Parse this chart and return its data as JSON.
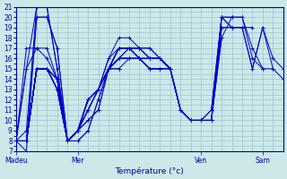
{
  "xlabel": "Température (°c)",
  "ylim": [
    7,
    21
  ],
  "yticks": [
    7,
    8,
    9,
    10,
    11,
    12,
    13,
    14,
    15,
    16,
    17,
    18,
    19,
    20,
    21
  ],
  "day_positions": [
    0,
    72,
    216,
    288
  ],
  "day_labels": [
    "Madeu",
    "Mer",
    "Ven",
    "Sam"
  ],
  "bg_color": "#cce8e8",
  "grid_color": "#99bbcc",
  "line_color": "#0000cc",
  "forecast_series": [
    {
      "x": [
        0,
        12,
        24,
        36,
        48,
        60,
        72,
        84,
        96,
        108,
        120,
        132,
        144,
        156,
        168,
        180,
        192,
        204,
        216,
        228,
        240,
        252,
        264,
        276,
        288,
        300,
        312
      ],
      "y": [
        8,
        8,
        20,
        20,
        17,
        8,
        8,
        9,
        12,
        15,
        16,
        17,
        16,
        15,
        15,
        15,
        11,
        10,
        10,
        10,
        19,
        19,
        19,
        15,
        19,
        16,
        15
      ]
    },
    {
      "x": [
        0,
        12,
        24,
        36,
        48,
        60,
        72,
        84,
        96,
        108,
        120,
        132,
        144,
        156,
        168,
        180,
        192,
        204,
        216,
        228,
        240,
        252,
        264,
        276,
        288,
        300,
        312
      ],
      "y": [
        8,
        7,
        20,
        20,
        17,
        8,
        8,
        9,
        12,
        15,
        16,
        17,
        16,
        15,
        15,
        15,
        11,
        10,
        10,
        10,
        19,
        19,
        19,
        15,
        19,
        15,
        14
      ]
    },
    {
      "x": [
        0,
        12,
        24,
        36,
        48,
        60,
        72,
        84,
        96,
        108,
        120,
        132,
        144,
        156,
        168,
        180,
        192,
        204,
        216,
        228,
        240,
        252,
        264,
        276,
        288,
        300
      ],
      "y": [
        8,
        9,
        21,
        21,
        15,
        8,
        9,
        10,
        11,
        15,
        17,
        17,
        16,
        16,
        16,
        15,
        11,
        10,
        10,
        11,
        20,
        20,
        20,
        16,
        15,
        15
      ]
    },
    {
      "x": [
        0,
        12,
        24,
        36,
        48,
        60,
        72,
        84,
        96,
        108,
        120,
        132,
        144,
        156,
        168,
        180,
        192,
        204,
        216,
        228,
        240,
        252,
        264,
        276,
        288
      ],
      "y": [
        8,
        15,
        21,
        21,
        15,
        8,
        9,
        10,
        11,
        15,
        17,
        17,
        16,
        16,
        16,
        15,
        11,
        10,
        10,
        11,
        20,
        20,
        20,
        17,
        15
      ]
    },
    {
      "x": [
        0,
        12,
        24,
        36,
        48,
        60,
        72,
        84,
        96,
        108,
        120,
        132,
        144,
        156,
        168,
        180,
        192,
        204,
        216,
        228,
        240,
        252,
        264,
        276
      ],
      "y": [
        8,
        17,
        17,
        17,
        14,
        8,
        9,
        11,
        13,
        16,
        18,
        18,
        17,
        17,
        16,
        15,
        11,
        10,
        10,
        10,
        20,
        19,
        19,
        19
      ]
    },
    {
      "x": [
        0,
        12,
        24,
        36,
        48,
        60,
        72,
        84,
        96,
        108,
        120,
        132,
        144,
        156,
        168,
        180,
        192,
        204,
        216,
        228,
        240,
        252,
        264
      ],
      "y": [
        8,
        15,
        17,
        16,
        14,
        8,
        9,
        11,
        13,
        16,
        17,
        17,
        17,
        17,
        16,
        15,
        11,
        10,
        10,
        10,
        20,
        19,
        19
      ]
    },
    {
      "x": [
        0,
        12,
        24,
        36,
        48,
        60,
        72,
        84,
        96,
        108,
        120,
        132,
        144,
        156,
        168,
        180,
        192,
        204,
        216,
        228,
        240,
        252
      ],
      "y": [
        8,
        8,
        15,
        15,
        13,
        8,
        9,
        11,
        13,
        15,
        17,
        17,
        17,
        16,
        16,
        15,
        11,
        10,
        10,
        10,
        18,
        20
      ]
    },
    {
      "x": [
        0,
        12,
        24,
        36,
        48,
        60,
        72,
        84,
        96,
        108,
        120,
        132,
        144,
        156,
        168,
        180,
        192,
        204,
        216,
        228,
        240
      ],
      "y": [
        8,
        8,
        15,
        15,
        13,
        8,
        9,
        11,
        13,
        15,
        17,
        17,
        17,
        16,
        16,
        15,
        11,
        10,
        10,
        10,
        18
      ]
    },
    {
      "x": [
        0,
        12,
        24,
        36,
        48,
        60,
        72,
        84,
        96,
        108,
        120,
        132,
        144,
        156,
        168,
        180,
        192,
        204,
        216,
        228
      ],
      "y": [
        8,
        8,
        15,
        15,
        14,
        8,
        9,
        12,
        13,
        15,
        17,
        17,
        17,
        16,
        16,
        15,
        11,
        10,
        10,
        10
      ]
    },
    {
      "x": [
        0,
        12,
        24,
        36,
        48,
        60,
        72,
        84,
        96,
        108,
        120,
        132,
        144,
        156,
        168,
        180,
        192,
        204,
        216
      ],
      "y": [
        8,
        8,
        15,
        15,
        14,
        8,
        9,
        12,
        13,
        15,
        17,
        17,
        17,
        16,
        16,
        15,
        11,
        10,
        10
      ]
    },
    {
      "x": [
        0,
        12,
        24,
        36,
        48,
        60,
        72,
        84,
        96,
        108,
        120,
        132,
        144,
        156,
        168,
        180,
        192,
        204
      ],
      "y": [
        8,
        8,
        15,
        15,
        14,
        8,
        9,
        12,
        13,
        15,
        16,
        16,
        16,
        16,
        16,
        15,
        11,
        10
      ]
    },
    {
      "x": [
        0,
        12,
        24,
        36,
        48,
        60,
        72,
        84,
        96,
        108,
        120,
        132,
        144,
        156,
        168,
        180,
        192
      ],
      "y": [
        8,
        8,
        15,
        15,
        14,
        8,
        9,
        12,
        13,
        15,
        16,
        16,
        16,
        16,
        16,
        15,
        11
      ]
    },
    {
      "x": [
        0,
        12,
        24,
        36,
        48,
        60,
        72,
        84,
        96,
        108,
        120,
        132,
        144,
        156,
        168,
        180
      ],
      "y": [
        8,
        8,
        15,
        15,
        14,
        8,
        9,
        12,
        13,
        15,
        16,
        16,
        16,
        15,
        15,
        15
      ]
    },
    {
      "x": [
        0,
        12,
        24,
        36,
        48,
        60,
        72,
        84,
        96,
        108,
        120,
        132,
        144,
        156,
        168
      ],
      "y": [
        8,
        8,
        15,
        15,
        14,
        8,
        9,
        12,
        13,
        15,
        16,
        16,
        16,
        15,
        15
      ]
    },
    {
      "x": [
        0,
        12,
        24,
        36,
        48,
        60,
        72,
        84,
        96,
        108,
        120,
        132,
        144,
        156
      ],
      "y": [
        8,
        8,
        15,
        15,
        14,
        8,
        9,
        12,
        13,
        15,
        16,
        16,
        16,
        15
      ]
    },
    {
      "x": [
        0,
        12,
        24,
        36,
        48,
        60,
        72,
        84,
        96,
        108,
        120,
        132,
        144
      ],
      "y": [
        8,
        8,
        15,
        15,
        14,
        8,
        9,
        12,
        13,
        15,
        16,
        16,
        16
      ]
    },
    {
      "x": [
        0,
        12,
        24,
        36,
        48,
        60,
        72,
        84,
        96,
        108,
        120,
        132
      ],
      "y": [
        8,
        8,
        15,
        15,
        14,
        8,
        9,
        12,
        13,
        15,
        15,
        16
      ]
    },
    {
      "x": [
        0,
        12,
        24,
        36,
        48,
        60,
        72,
        84,
        96,
        108,
        120
      ],
      "y": [
        8,
        8,
        15,
        15,
        14,
        8,
        9,
        12,
        13,
        15,
        15
      ]
    },
    {
      "x": [
        0,
        12,
        24,
        36,
        48,
        60,
        72,
        84,
        96,
        108
      ],
      "y": [
        8,
        8,
        15,
        15,
        14,
        8,
        9,
        12,
        13,
        15
      ]
    },
    {
      "x": [
        0,
        12,
        24,
        36,
        48,
        60,
        72,
        84,
        96
      ],
      "y": [
        8,
        8,
        15,
        15,
        14,
        8,
        9,
        12,
        13
      ]
    },
    {
      "x": [
        0,
        12,
        24,
        36,
        48,
        60,
        72,
        84
      ],
      "y": [
        8,
        8,
        15,
        15,
        13,
        8,
        9,
        11
      ]
    },
    {
      "x": [
        0,
        12,
        24,
        36,
        48,
        60,
        72
      ],
      "y": [
        8,
        8,
        15,
        15,
        13,
        8,
        9
      ]
    },
    {
      "x": [
        0,
        12,
        24,
        36,
        48,
        60
      ],
      "y": [
        8,
        8,
        15,
        15,
        13,
        8
      ]
    },
    {
      "x": [
        0,
        12,
        24,
        36,
        48
      ],
      "y": [
        8,
        8,
        15,
        15,
        13
      ]
    },
    {
      "x": [
        0,
        12,
        24,
        36
      ],
      "y": [
        8,
        8,
        15,
        15
      ]
    },
    {
      "x": [
        0,
        12,
        24
      ],
      "y": [
        8,
        8,
        15
      ]
    },
    {
      "x": [
        0,
        12
      ],
      "y": [
        8,
        8
      ]
    },
    {
      "x": [
        0
      ],
      "y": [
        8
      ]
    }
  ]
}
